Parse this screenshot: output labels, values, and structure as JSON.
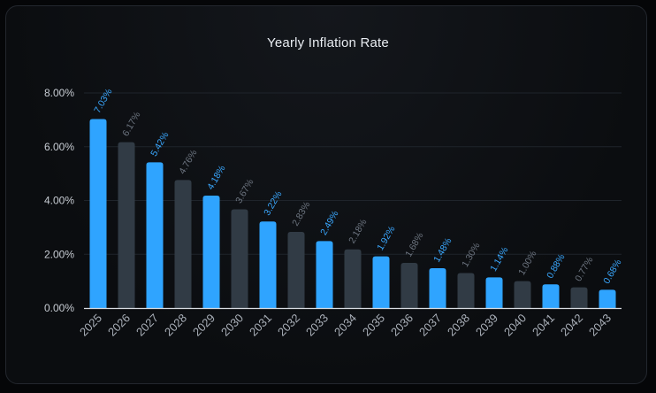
{
  "chart_data": {
    "type": "bar",
    "title": "Yearly Inflation Rate",
    "categories": [
      "2025",
      "2026",
      "2027",
      "2028",
      "2029",
      "2030",
      "2031",
      "2032",
      "2033",
      "2034",
      "2035",
      "2036",
      "2037",
      "2038",
      "2039",
      "2040",
      "2041",
      "2042",
      "2043"
    ],
    "values": [
      7.03,
      6.17,
      5.42,
      4.76,
      4.18,
      3.67,
      3.22,
      2.83,
      2.49,
      2.18,
      1.92,
      1.68,
      1.48,
      1.3,
      1.14,
      1.0,
      0.88,
      0.77,
      0.68
    ],
    "data_labels": [
      "7.03%",
      "6.17%",
      "5.42%",
      "4.76%",
      "4.18%",
      "3.67%",
      "3.22%",
      "2.83%",
      "2.49%",
      "2.18%",
      "1.92%",
      "1.68%",
      "1.48%",
      "1.30%",
      "1.14%",
      "1.00%",
      "0.88%",
      "0.77%",
      "0.68%"
    ],
    "y_ticks": [
      "0.00%",
      "2.00%",
      "4.00%",
      "6.00%",
      "8.00%"
    ],
    "y_tick_values": [
      0,
      2,
      4,
      6,
      8
    ],
    "ylim": [
      0,
      8
    ],
    "grid": true,
    "colors": {
      "highlight_bar": "#2fa4ff",
      "muted_bar": "#313b45",
      "highlight_label": "#3aa8ff",
      "muted_label": "#6d7580",
      "grid": "#1f242b",
      "axis": "#d9dde3"
    }
  }
}
